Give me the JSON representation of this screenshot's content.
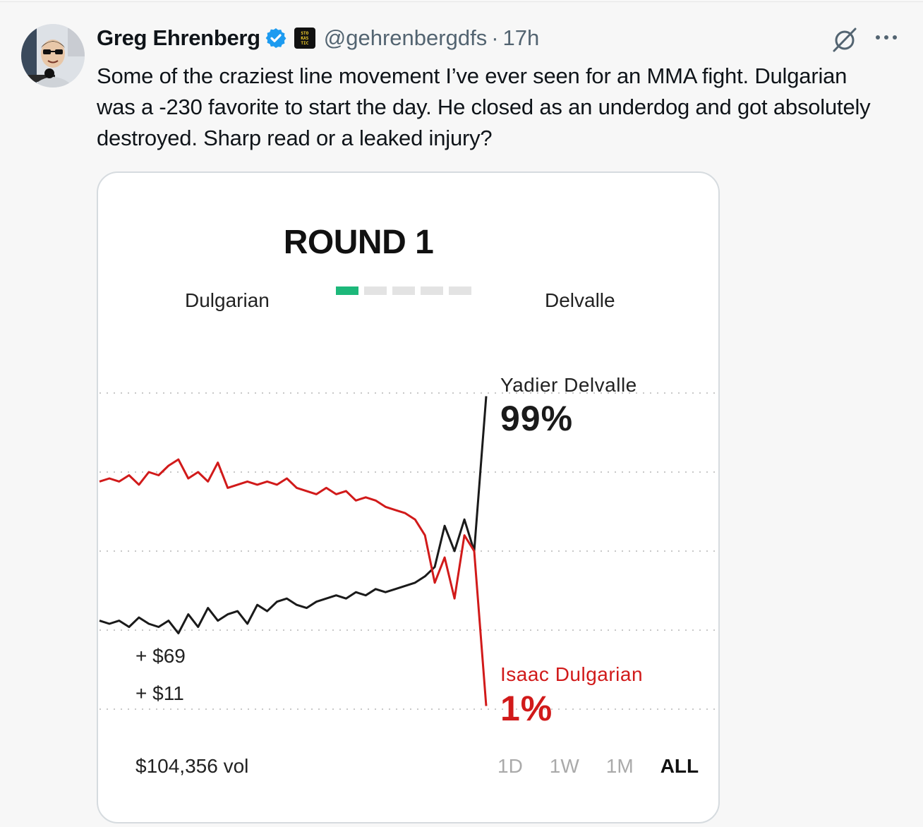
{
  "tweet": {
    "author_name": "Greg Ehrenberg",
    "handle": "@gehrenbergdfs",
    "separator": "·",
    "time": "17h",
    "text": "Some of the craziest line movement I’ve ever seen for an MMA fight. Dulgarian was a -230 favorite to start the day. He closed as an underdog and got absolutely destroyed. Sharp read or a leaked injury?",
    "affiliate_badge_lines": [
      "STO",
      "KAS",
      "TIC"
    ]
  },
  "icons": {
    "verified": "verified-badge-icon",
    "grok": "grok-icon",
    "more": "more-options-icon"
  },
  "colors": {
    "verified": "#1d9bf0",
    "red_series": "#d11a1a",
    "black_series": "#1a1a1a",
    "active_segment": "#1db87a"
  },
  "card": {
    "round_title": "ROUND 1",
    "fighter_left": "Dulgarian",
    "fighter_right": "Delvalle",
    "rounds_total": 5,
    "rounds_active": 1,
    "stake1": "+ $69",
    "stake2": "+ $11",
    "volume": "$104,356 vol",
    "ranges": [
      "1D",
      "1W",
      "1M",
      "ALL"
    ],
    "selected_range": "ALL"
  },
  "chart_data": {
    "type": "line",
    "series": [
      {
        "name": "Yadier Delvalle",
        "final_label": "99%",
        "color": "#1a1a1a",
        "values": [
          28,
          27,
          28,
          26,
          29,
          27,
          26,
          28,
          24,
          30,
          26,
          32,
          28,
          30,
          31,
          27,
          33,
          31,
          34,
          35,
          33,
          32,
          34,
          35,
          36,
          35,
          37,
          36,
          38,
          37,
          38,
          39,
          40,
          42,
          45,
          58,
          50,
          60,
          50,
          99
        ]
      },
      {
        "name": "Isaac Dulgarian",
        "final_label": "1%",
        "color": "#d11a1a",
        "values": [
          72,
          73,
          72,
          74,
          71,
          75,
          74,
          77,
          79,
          73,
          75,
          72,
          78,
          70,
          71,
          72,
          71,
          72,
          71,
          73,
          70,
          69,
          68,
          70,
          68,
          69,
          66,
          67,
          66,
          64,
          63,
          62,
          60,
          55,
          40,
          48,
          35,
          55,
          50,
          1
        ]
      }
    ],
    "ylim": [
      0,
      100
    ],
    "grid": true
  }
}
